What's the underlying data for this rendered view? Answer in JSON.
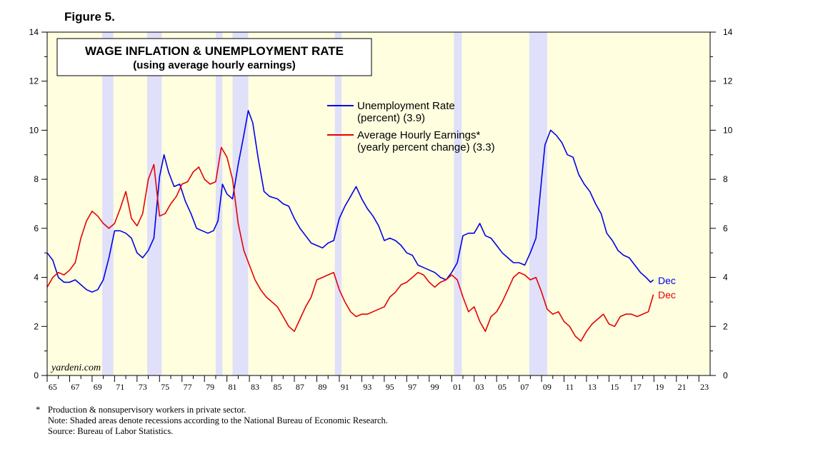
{
  "figure_label": "Figure 5.",
  "footnotes": {
    "star_mark": "*",
    "line1": "Production & nonsupervisory workers in private sector.",
    "line2": "Note: Shaded areas denote recessions according to the National Bureau of Economic Research.",
    "line3": "Source: Bureau of Labor Statistics."
  },
  "colors": {
    "plot_background": "#ffffe0",
    "recession_band": "#e0e0fa",
    "unemployment": "#0000e6",
    "earnings": "#e60000"
  },
  "chart_data": {
    "type": "line",
    "title": "WAGE INFLATION & UNEMPLOYMENT RATE",
    "subtitle": "(using average hourly earnings)",
    "watermark": "yardeni.com",
    "xlim": [
      1965,
      2024
    ],
    "ylim": [
      0,
      14
    ],
    "y_ticks": [
      0,
      2,
      4,
      6,
      8,
      10,
      12,
      14
    ],
    "y_tick_labels": [
      "0",
      "2",
      "4",
      "6",
      "8",
      "10",
      "12",
      "14"
    ],
    "x_tick_labels": [
      "65",
      "67",
      "69",
      "71",
      "73",
      "75",
      "77",
      "79",
      "81",
      "83",
      "85",
      "87",
      "89",
      "91",
      "93",
      "95",
      "97",
      "99",
      "01",
      "03",
      "05",
      "07",
      "09",
      "11",
      "13",
      "15",
      "17",
      "19",
      "21",
      "23"
    ],
    "grid": false,
    "legend_position": "top-center",
    "recessions": [
      [
        1969.9,
        1970.9
      ],
      [
        1973.9,
        1975.2
      ],
      [
        1980.0,
        1980.6
      ],
      [
        1981.5,
        1982.9
      ],
      [
        1990.6,
        1991.2
      ],
      [
        2001.2,
        2001.9
      ],
      [
        2007.9,
        2009.5
      ]
    ],
    "series": [
      {
        "name": "Unemployment Rate",
        "legend_line1": "Unemployment Rate",
        "legend_line2": "(percent) (3.9)",
        "end_label": "Dec",
        "color_key": "unemployment",
        "x": [
          1965.0,
          1965.5,
          1966.0,
          1966.5,
          1967.0,
          1967.5,
          1968.0,
          1968.5,
          1969.0,
          1969.5,
          1970.0,
          1970.5,
          1971.0,
          1971.5,
          1972.0,
          1972.5,
          1973.0,
          1973.5,
          1974.0,
          1974.5,
          1975.0,
          1975.4,
          1975.8,
          1976.3,
          1976.8,
          1977.3,
          1977.8,
          1978.3,
          1978.8,
          1979.3,
          1979.8,
          1980.2,
          1980.6,
          1981.0,
          1981.5,
          1982.0,
          1982.5,
          1982.9,
          1983.3,
          1983.8,
          1984.3,
          1984.8,
          1985.5,
          1986.0,
          1986.5,
          1987.0,
          1987.5,
          1988.0,
          1988.5,
          1989.0,
          1989.5,
          1990.0,
          1990.5,
          1991.0,
          1991.5,
          1992.0,
          1992.5,
          1993.0,
          1993.5,
          1994.0,
          1994.5,
          1995.0,
          1995.5,
          1996.0,
          1996.5,
          1997.0,
          1997.5,
          1998.0,
          1998.5,
          1999.0,
          1999.5,
          2000.0,
          2000.5,
          2001.0,
          2001.5,
          2002.0,
          2002.5,
          2003.0,
          2003.5,
          2004.0,
          2004.5,
          2005.0,
          2005.5,
          2006.0,
          2006.5,
          2007.0,
          2007.5,
          2008.0,
          2008.5,
          2009.0,
          2009.3,
          2009.8,
          2010.3,
          2010.8,
          2011.3,
          2011.8,
          2012.3,
          2012.8,
          2013.3,
          2013.8,
          2014.3,
          2014.8,
          2015.3,
          2015.8,
          2016.3,
          2016.8,
          2017.3,
          2017.8,
          2018.3,
          2018.7,
          2018.95
        ],
        "values": [
          5.0,
          4.7,
          4.0,
          3.8,
          3.8,
          3.9,
          3.7,
          3.5,
          3.4,
          3.5,
          3.9,
          4.8,
          5.9,
          5.9,
          5.8,
          5.6,
          5.0,
          4.8,
          5.1,
          5.6,
          8.1,
          9.0,
          8.3,
          7.7,
          7.8,
          7.1,
          6.6,
          6.0,
          5.9,
          5.8,
          5.9,
          6.3,
          7.8,
          7.4,
          7.2,
          8.6,
          9.8,
          10.8,
          10.3,
          8.8,
          7.5,
          7.3,
          7.2,
          7.0,
          6.9,
          6.4,
          6.0,
          5.7,
          5.4,
          5.3,
          5.2,
          5.4,
          5.5,
          6.4,
          6.9,
          7.3,
          7.7,
          7.2,
          6.8,
          6.5,
          6.1,
          5.5,
          5.6,
          5.5,
          5.3,
          5.0,
          4.9,
          4.5,
          4.4,
          4.3,
          4.2,
          4.0,
          3.9,
          4.2,
          4.6,
          5.7,
          5.8,
          5.8,
          6.2,
          5.7,
          5.6,
          5.3,
          5.0,
          4.8,
          4.6,
          4.6,
          4.5,
          5.0,
          5.6,
          8.0,
          9.4,
          10.0,
          9.8,
          9.5,
          9.0,
          8.9,
          8.2,
          7.8,
          7.5,
          7.0,
          6.6,
          5.8,
          5.5,
          5.1,
          4.9,
          4.8,
          4.5,
          4.2,
          4.0,
          3.8,
          3.9
        ]
      },
      {
        "name": "Average Hourly Earnings*",
        "legend_line1": "Average Hourly Earnings*",
        "legend_line2": "(yearly percent change) (3.3)",
        "end_label": "Dec",
        "color_key": "earnings",
        "x": [
          1965.0,
          1965.5,
          1966.0,
          1966.5,
          1967.0,
          1967.5,
          1968.0,
          1968.5,
          1969.0,
          1969.5,
          1970.0,
          1970.5,
          1971.0,
          1971.5,
          1972.0,
          1972.5,
          1973.0,
          1973.5,
          1974.0,
          1974.5,
          1975.0,
          1975.5,
          1976.0,
          1976.5,
          1977.0,
          1977.5,
          1978.0,
          1978.5,
          1979.0,
          1979.5,
          1980.0,
          1980.5,
          1981.0,
          1981.5,
          1982.0,
          1982.5,
          1983.0,
          1983.5,
          1984.0,
          1984.5,
          1985.0,
          1985.5,
          1986.0,
          1986.5,
          1987.0,
          1987.5,
          1988.0,
          1988.5,
          1989.0,
          1989.5,
          1990.0,
          1990.5,
          1991.0,
          1991.5,
          1992.0,
          1992.5,
          1993.0,
          1993.5,
          1994.0,
          1994.5,
          1995.0,
          1995.5,
          1996.0,
          1996.5,
          1997.0,
          1997.5,
          1998.0,
          1998.5,
          1999.0,
          1999.5,
          2000.0,
          2000.5,
          2001.0,
          2001.5,
          2002.0,
          2002.5,
          2003.0,
          2003.5,
          2004.0,
          2004.5,
          2005.0,
          2005.5,
          2006.0,
          2006.5,
          2007.0,
          2007.5,
          2008.0,
          2008.5,
          2009.0,
          2009.5,
          2010.0,
          2010.5,
          2011.0,
          2011.5,
          2012.0,
          2012.5,
          2013.0,
          2013.5,
          2014.0,
          2014.5,
          2015.0,
          2015.5,
          2016.0,
          2016.5,
          2017.0,
          2017.5,
          2018.0,
          2018.5,
          2018.95
        ],
        "values": [
          3.6,
          4.0,
          4.2,
          4.1,
          4.3,
          4.6,
          5.6,
          6.3,
          6.7,
          6.5,
          6.2,
          6.0,
          6.2,
          6.8,
          7.5,
          6.4,
          6.1,
          6.6,
          8.0,
          8.6,
          6.5,
          6.6,
          7.0,
          7.3,
          7.8,
          7.9,
          8.3,
          8.5,
          8.0,
          7.8,
          7.9,
          9.3,
          8.9,
          8.0,
          6.2,
          5.1,
          4.5,
          3.9,
          3.5,
          3.2,
          3.0,
          2.8,
          2.4,
          2.0,
          1.8,
          2.3,
          2.8,
          3.2,
          3.9,
          4.0,
          4.1,
          4.2,
          3.5,
          3.0,
          2.6,
          2.4,
          2.5,
          2.5,
          2.6,
          2.7,
          2.8,
          3.2,
          3.4,
          3.7,
          3.8,
          4.0,
          4.2,
          4.1,
          3.8,
          3.6,
          3.8,
          3.9,
          4.1,
          3.9,
          3.2,
          2.6,
          2.8,
          2.2,
          1.8,
          2.4,
          2.6,
          3.0,
          3.5,
          4.0,
          4.2,
          4.1,
          3.9,
          4.0,
          3.4,
          2.7,
          2.5,
          2.6,
          2.2,
          2.0,
          1.6,
          1.4,
          1.8,
          2.1,
          2.3,
          2.5,
          2.1,
          2.0,
          2.4,
          2.5,
          2.5,
          2.4,
          2.5,
          2.6,
          3.3
        ]
      }
    ]
  }
}
